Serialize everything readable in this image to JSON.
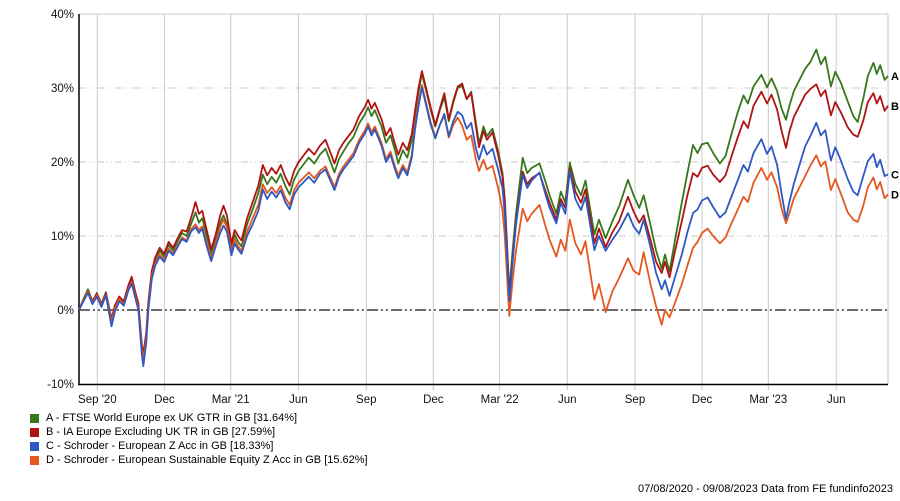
{
  "footer": {
    "text": "07/08/2020 - 09/08/2023 Data from FE fundinfo2023"
  },
  "colors": {
    "axis": "#000000",
    "grid": "#c9c9c9",
    "zero_line": "#111111",
    "text": "#111111"
  },
  "chart_data": {
    "type": "line",
    "title": "",
    "xlabel": "",
    "ylabel": "",
    "x_unit": "months since 07/08/2020",
    "period": "07/08/2020 - 09/08/2023",
    "ylim": [
      -10.1,
      40
    ],
    "grid": "on",
    "legend_position": "bottom-left",
    "y_axis": {
      "ticks": [
        {
          "v": 40,
          "label": "40%"
        },
        {
          "v": 30,
          "label": "30%"
        },
        {
          "v": 20,
          "label": "20%"
        },
        {
          "v": 10,
          "label": "10%"
        },
        {
          "v": 0,
          "label": "0%"
        },
        {
          "v": -10,
          "label": "-10%"
        }
      ]
    },
    "x_axis": {
      "ticks": [
        {
          "m": 0.82,
          "label": "Sep '20"
        },
        {
          "m": 3.81,
          "label": "Dec"
        },
        {
          "m": 6.77,
          "label": "Mar '21"
        },
        {
          "m": 9.79,
          "label": "Jun"
        },
        {
          "m": 12.82,
          "label": "Sep"
        },
        {
          "m": 15.81,
          "label": "Dec"
        },
        {
          "m": 18.77,
          "label": "Mar '22"
        },
        {
          "m": 21.79,
          "label": "Jun"
        },
        {
          "m": 24.81,
          "label": "Sep"
        },
        {
          "m": 27.8,
          "label": "Dec"
        },
        {
          "m": 30.76,
          "label": "Mar '23"
        },
        {
          "m": 33.79,
          "label": "Jun"
        }
      ]
    },
    "x": [
      0,
      0.2,
      0.4,
      0.6,
      0.8,
      1,
      1.2,
      1.45,
      1.6,
      1.8,
      2,
      2.2,
      2.35,
      2.5,
      2.65,
      2.8,
      2.87,
      3,
      3.1,
      3.25,
      3.4,
      3.6,
      3.8,
      4,
      4.2,
      4.45,
      4.6,
      4.8,
      5,
      5.2,
      5.35,
      5.5,
      5.7,
      5.9,
      6.1,
      6.3,
      6.45,
      6.6,
      6.8,
      6.95,
      7.1,
      7.25,
      7.5,
      7.75,
      8,
      8.2,
      8.4,
      8.6,
      8.8,
      9,
      9.2,
      9.4,
      9.6,
      9.8,
      10,
      10.25,
      10.5,
      10.75,
      11,
      11.2,
      11.4,
      11.6,
      11.8,
      12,
      12.25,
      12.5,
      12.75,
      12.9,
      13.05,
      13.2,
      13.5,
      13.7,
      13.9,
      14.1,
      14.25,
      14.45,
      14.65,
      14.85,
      15,
      15.15,
      15.3,
      15.5,
      15.7,
      15.9,
      16.1,
      16.3,
      16.5,
      16.7,
      16.9,
      17.1,
      17.3,
      17.5,
      17.7,
      17.85,
      18.05,
      18.2,
      18.45,
      18.7,
      18.9,
      19,
      19.2,
      19.35,
      19.5,
      19.8,
      20,
      20.2,
      20.55,
      20.8,
      21,
      21.3,
      21.5,
      21.7,
      21.9,
      22.15,
      22.4,
      22.6,
      23,
      23.2,
      23.5,
      23.8,
      24.1,
      24.5,
      24.75,
      25,
      25.2,
      25.5,
      25.75,
      26,
      26.15,
      26.35,
      26.6,
      26.9,
      27.15,
      27.4,
      27.6,
      27.8,
      28.05,
      28.3,
      28.6,
      28.85,
      29.1,
      29.4,
      29.65,
      29.85,
      30.1,
      30.45,
      30.7,
      30.9,
      31.15,
      31.35,
      31.55,
      31.7,
      31.9,
      32.15,
      32.4,
      32.65,
      32.9,
      33.1,
      33.3,
      33.55,
      33.75,
      34,
      34.3,
      34.55,
      34.75,
      35,
      35.2,
      35.45,
      35.6,
      35.75,
      35.95,
      36.1
    ],
    "series": [
      {
        "id": "A",
        "name": "FTSE World Europe ex UK GTR in GB",
        "legend_label": "A - FTSE World Europe ex UK GTR in GB [31.64%]",
        "final_value_pct": 31.64,
        "color": "#38771c",
        "values": [
          0,
          1.5,
          2.8,
          1.2,
          2.3,
          0.8,
          2.4,
          -1.3,
          0.6,
          1.8,
          1,
          3,
          4,
          2.2,
          0.5,
          -5,
          -6.5,
          -3.5,
          1,
          5,
          6.8,
          8,
          7.2,
          8.8,
          8,
          9.6,
          10.4,
          10,
          11.6,
          13.2,
          11.8,
          12.4,
          10,
          7.6,
          9.6,
          11.8,
          12.8,
          11.6,
          8.4,
          10.2,
          9.2,
          8.6,
          11.6,
          13.6,
          15.8,
          18.3,
          17,
          18,
          17.2,
          18.4,
          16.8,
          15.6,
          17.6,
          18.8,
          19.6,
          20.6,
          19.8,
          21,
          21.8,
          20.2,
          18.6,
          20.4,
          21.4,
          22.4,
          23.4,
          25.2,
          26.4,
          27.4,
          26.2,
          27,
          24.8,
          22.6,
          23.6,
          21.6,
          19.8,
          21.6,
          20.6,
          23,
          26.5,
          29.5,
          31.9,
          29.5,
          27,
          24.8,
          27,
          28.8,
          25.5,
          28,
          30,
          30.3,
          28.5,
          29.5,
          25.5,
          22.5,
          24.8,
          23.5,
          24.5,
          21.5,
          18.5,
          15,
          2.5,
          8,
          13,
          20.6,
          18.5,
          19.2,
          19.8,
          17.5,
          15.5,
          13,
          16,
          14.5,
          19.9,
          17,
          15.5,
          17.5,
          10.2,
          12.2,
          9.7,
          12,
          14,
          17.6,
          15.5,
          13.8,
          15.5,
          11.5,
          8,
          5.6,
          7.5,
          5.2,
          9.5,
          14.5,
          18.5,
          22.3,
          21.2,
          22.4,
          22.6,
          21.2,
          19.8,
          20.8,
          23.6,
          26.8,
          29,
          27.9,
          30.2,
          31.8,
          30.1,
          31.3,
          29.6,
          27.2,
          25.7,
          27.6,
          29.6,
          31.1,
          32.6,
          33.6,
          35.2,
          33.2,
          34.2,
          30.2,
          32.2,
          30.7,
          28.2,
          26.2,
          25.4,
          28.6,
          31.6,
          33.4,
          31.9,
          33.1,
          31.1,
          31.64
        ]
      },
      {
        "id": "B",
        "name": "IA Europe Excluding UK TR in GB",
        "legend_label": "B - IA Europe Excluding UK TR in GB [27.59%]",
        "final_value_pct": 27.59,
        "color": "#b01313",
        "values": [
          0,
          1.4,
          2.6,
          1.1,
          2.2,
          0.8,
          2.3,
          -1.2,
          0.6,
          1.8,
          1.2,
          3.3,
          4.5,
          2.6,
          0.9,
          -4.5,
          -6,
          -3.1,
          1.3,
          5.3,
          7.1,
          8.4,
          7.6,
          9.2,
          8.4,
          10,
          10.8,
          10.6,
          12.4,
          14.6,
          13,
          13.4,
          10.8,
          8.2,
          10.2,
          12.8,
          14.1,
          12.8,
          9,
          10.8,
          10,
          9.4,
          12.4,
          14.6,
          16.8,
          19.6,
          18.2,
          19.2,
          18.4,
          19.6,
          18,
          16.8,
          18.8,
          20,
          20.8,
          21.8,
          21,
          22.2,
          23,
          21.4,
          19.8,
          21.6,
          22.6,
          23.4,
          24.4,
          26.2,
          27.4,
          28.4,
          27.2,
          28,
          25.8,
          23.6,
          24.6,
          22.4,
          21,
          22.6,
          21.6,
          23.8,
          27,
          30,
          32.3,
          29.8,
          27.3,
          25,
          27.2,
          29.3,
          25.8,
          28.2,
          30.2,
          30.6,
          28.5,
          29.3,
          25,
          22,
          24.2,
          23,
          24,
          21,
          18,
          14.5,
          2,
          7,
          12,
          18.7,
          17,
          17.8,
          18.5,
          16.2,
          14.5,
          12.2,
          15,
          13.8,
          19.2,
          16,
          14.5,
          16.3,
          9,
          11,
          8.5,
          10.5,
          12,
          15.3,
          13.3,
          11.8,
          12.8,
          9.5,
          6.5,
          5,
          6.5,
          4.4,
          8,
          12,
          15.5,
          18.5,
          18,
          19.2,
          19.5,
          18.3,
          17.3,
          18.2,
          20.6,
          23.4,
          25.5,
          24.6,
          27.6,
          29.5,
          27.9,
          29.1,
          27.1,
          24.2,
          21.9,
          24.1,
          26.1,
          27.6,
          29.1,
          29.9,
          30.5,
          28.9,
          29.7,
          26.3,
          28.1,
          26.7,
          24.7,
          23.7,
          23.4,
          25.6,
          28.1,
          29.3,
          27.9,
          28.9,
          26.9,
          27.59
        ]
      },
      {
        "id": "C",
        "name": "Schroder - European Z Acc in GB",
        "legend_label": "C - Schroder - European Z Acc in GB [18.33%]",
        "final_value_pct": 18.33,
        "color": "#2e59c3",
        "values": [
          0,
          1.2,
          2.3,
          0.8,
          1.8,
          0.4,
          2,
          -2.2,
          -0.2,
          1.2,
          0.6,
          2.6,
          3.6,
          1.8,
          0,
          -5.8,
          -7.6,
          -4.5,
          0.2,
          4.2,
          6,
          7.2,
          6.5,
          8,
          7.4,
          8.8,
          9.6,
          9.2,
          10.6,
          11.2,
          10.4,
          11,
          8.6,
          6.6,
          8.6,
          10.4,
          11.4,
          10.6,
          7.4,
          9,
          8.2,
          7.6,
          10,
          11.6,
          13.4,
          16.3,
          15,
          16,
          15.2,
          16.2,
          14.6,
          13.6,
          15.6,
          16.6,
          17.2,
          18,
          17.2,
          18.4,
          19,
          17.6,
          16.2,
          18,
          19,
          19.8,
          20.8,
          22.6,
          23.8,
          24.8,
          23.6,
          24.4,
          22.2,
          20,
          21,
          19,
          17.8,
          19.2,
          18.2,
          20.6,
          24.5,
          27.5,
          30.1,
          27.5,
          25,
          23.2,
          25,
          26.5,
          23.5,
          25.5,
          26.8,
          26.3,
          24.5,
          25.3,
          22,
          20.3,
          22.3,
          21,
          21.8,
          19,
          16.5,
          13,
          1.2,
          6.5,
          11.5,
          18.3,
          16.5,
          17.5,
          18.6,
          15.8,
          13.8,
          11.7,
          14.5,
          13,
          18.8,
          15,
          13.5,
          15.3,
          8.1,
          10,
          8,
          9.5,
          10.8,
          13.1,
          11.3,
          10.3,
          12.2,
          8.5,
          5,
          2.8,
          4,
          1.9,
          4.5,
          7.5,
          10.5,
          13.1,
          13.6,
          14.8,
          15.2,
          13.9,
          12.5,
          13.2,
          15.2,
          17.6,
          19.6,
          18.7,
          21.2,
          23.1,
          21.1,
          22.1,
          19.6,
          15.7,
          12.3,
          14.6,
          17.1,
          19.6,
          22.1,
          23.6,
          25.3,
          23.6,
          24.3,
          20.2,
          22,
          20.2,
          17.7,
          16,
          15.5,
          18.1,
          20.1,
          21.1,
          19.3,
          20.3,
          18.1,
          18.33
        ]
      },
      {
        "id": "D",
        "name": "Schroder - European Sustainable Equity Z Acc in GB",
        "legend_label": "D - Schroder - European Sustainable Equity Z Acc in GB [15.62%]",
        "final_value_pct": 15.62,
        "color": "#e45820",
        "values": [
          0,
          1.3,
          2.5,
          1,
          2,
          0.6,
          2.1,
          -1.6,
          0.2,
          1.5,
          0.8,
          2.8,
          3.8,
          2,
          0.3,
          -5.2,
          -6.8,
          -3.9,
          0.6,
          4.6,
          6.3,
          7.5,
          6.8,
          8.3,
          7.6,
          9,
          9.8,
          9.4,
          10.9,
          11.6,
          10.8,
          11.3,
          9,
          7,
          9,
          11.2,
          12.2,
          11.2,
          7.8,
          9.6,
          8.6,
          8,
          10.6,
          12.4,
          14.2,
          17,
          15.8,
          16.6,
          15.8,
          16.8,
          15.2,
          14.2,
          16.2,
          17.2,
          17.8,
          18.6,
          17.8,
          18.8,
          19.4,
          18,
          16.6,
          18.4,
          19.4,
          20.2,
          21.2,
          23,
          24.2,
          25.2,
          24,
          24.8,
          22.6,
          20.4,
          21.4,
          19.4,
          18.2,
          19.6,
          18.6,
          21,
          25,
          28,
          30.4,
          27.8,
          25.3,
          23.4,
          25,
          26.3,
          23.3,
          25,
          26,
          24.9,
          23,
          23.6,
          20.5,
          18.8,
          20.3,
          19,
          19.5,
          16.5,
          13.5,
          10,
          -0.8,
          4,
          8,
          13.7,
          12,
          13,
          14.2,
          11.5,
          9.5,
          7.2,
          9.5,
          8,
          12.2,
          9,
          7.5,
          9.3,
          1.4,
          3.5,
          -0.3,
          2.5,
          4.3,
          7,
          5.3,
          4.8,
          7.8,
          3.5,
          0.5,
          -2,
          0,
          -1,
          1,
          3.5,
          6,
          8.4,
          9.2,
          10.4,
          11,
          10,
          9,
          9.8,
          11.6,
          13.6,
          15.3,
          14.6,
          17.2,
          19.2,
          17.6,
          18.6,
          16.6,
          13.7,
          11.7,
          13.1,
          15.1,
          16.6,
          18.1,
          19.6,
          20.9,
          19.4,
          20.1,
          16.2,
          17.7,
          15.7,
          13.2,
          12.2,
          11.9,
          14.1,
          16.6,
          17.9,
          16.3,
          17.3,
          15.1,
          15.62
        ]
      }
    ]
  }
}
